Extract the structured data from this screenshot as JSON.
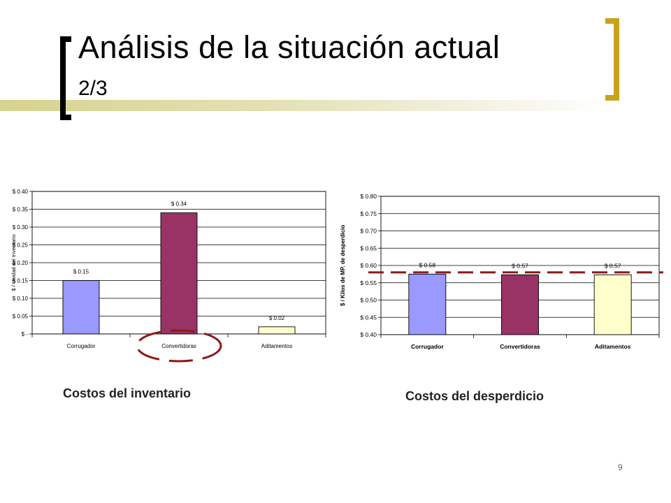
{
  "slide": {
    "title": "Análisis de la situación actual",
    "subtitle": "2/3",
    "page_number": "9",
    "accent_color": "#c9a21a"
  },
  "captions": {
    "left": "Costos del inventario",
    "right": "Costos del desperdicio"
  },
  "chart_data": [
    {
      "type": "bar",
      "categories": [
        "Corrugador",
        "Convertidoras",
        "Aditamentos"
      ],
      "values": [
        0.15,
        0.34,
        0.02
      ],
      "value_labels": [
        "$ 0.15",
        "$ 0.34",
        "$ 0.02"
      ],
      "colors": [
        "#9999ff",
        "#993366",
        "#ffffcc"
      ],
      "ylabel": "$ / Unidad del Inventario",
      "ylim": [
        0,
        0.4
      ],
      "yticks": [
        0,
        0.05,
        0.1,
        0.15,
        0.2,
        0.25,
        0.3,
        0.35,
        0.4
      ],
      "ytick_labels": [
        "$ -",
        "$ 0.05",
        "$ 0.10",
        "$ 0.15",
        "$ 0.20",
        "$ 0.25",
        "$ 0.30",
        "$ 0.35",
        "$ 0.40"
      ],
      "grid": true,
      "highlight_category": "Convertidoras"
    },
    {
      "type": "bar",
      "categories": [
        "Corrugador",
        "Convertidoras",
        "Aditamentos"
      ],
      "values": [
        0.575,
        0.573,
        0.573
      ],
      "value_labels": [
        "$ 0.58",
        "$ 0.57",
        "$ 0.57"
      ],
      "colors": [
        "#9999ff",
        "#993366",
        "#ffffcc"
      ],
      "ylabel": "$ / Kilos de MP. de desperdicio",
      "ylim": [
        0.4,
        0.8
      ],
      "yticks": [
        0.4,
        0.45,
        0.5,
        0.55,
        0.6,
        0.65,
        0.7,
        0.75,
        0.8
      ],
      "ytick_labels": [
        "$ 0.40",
        "$ 0.45",
        "$ 0.50",
        "$ 0.55",
        "$ 0.60",
        "$ 0.65",
        "$ 0.70",
        "$ 0.75",
        "$ 0.80"
      ],
      "grid": true,
      "reference_line": 0.58
    }
  ]
}
